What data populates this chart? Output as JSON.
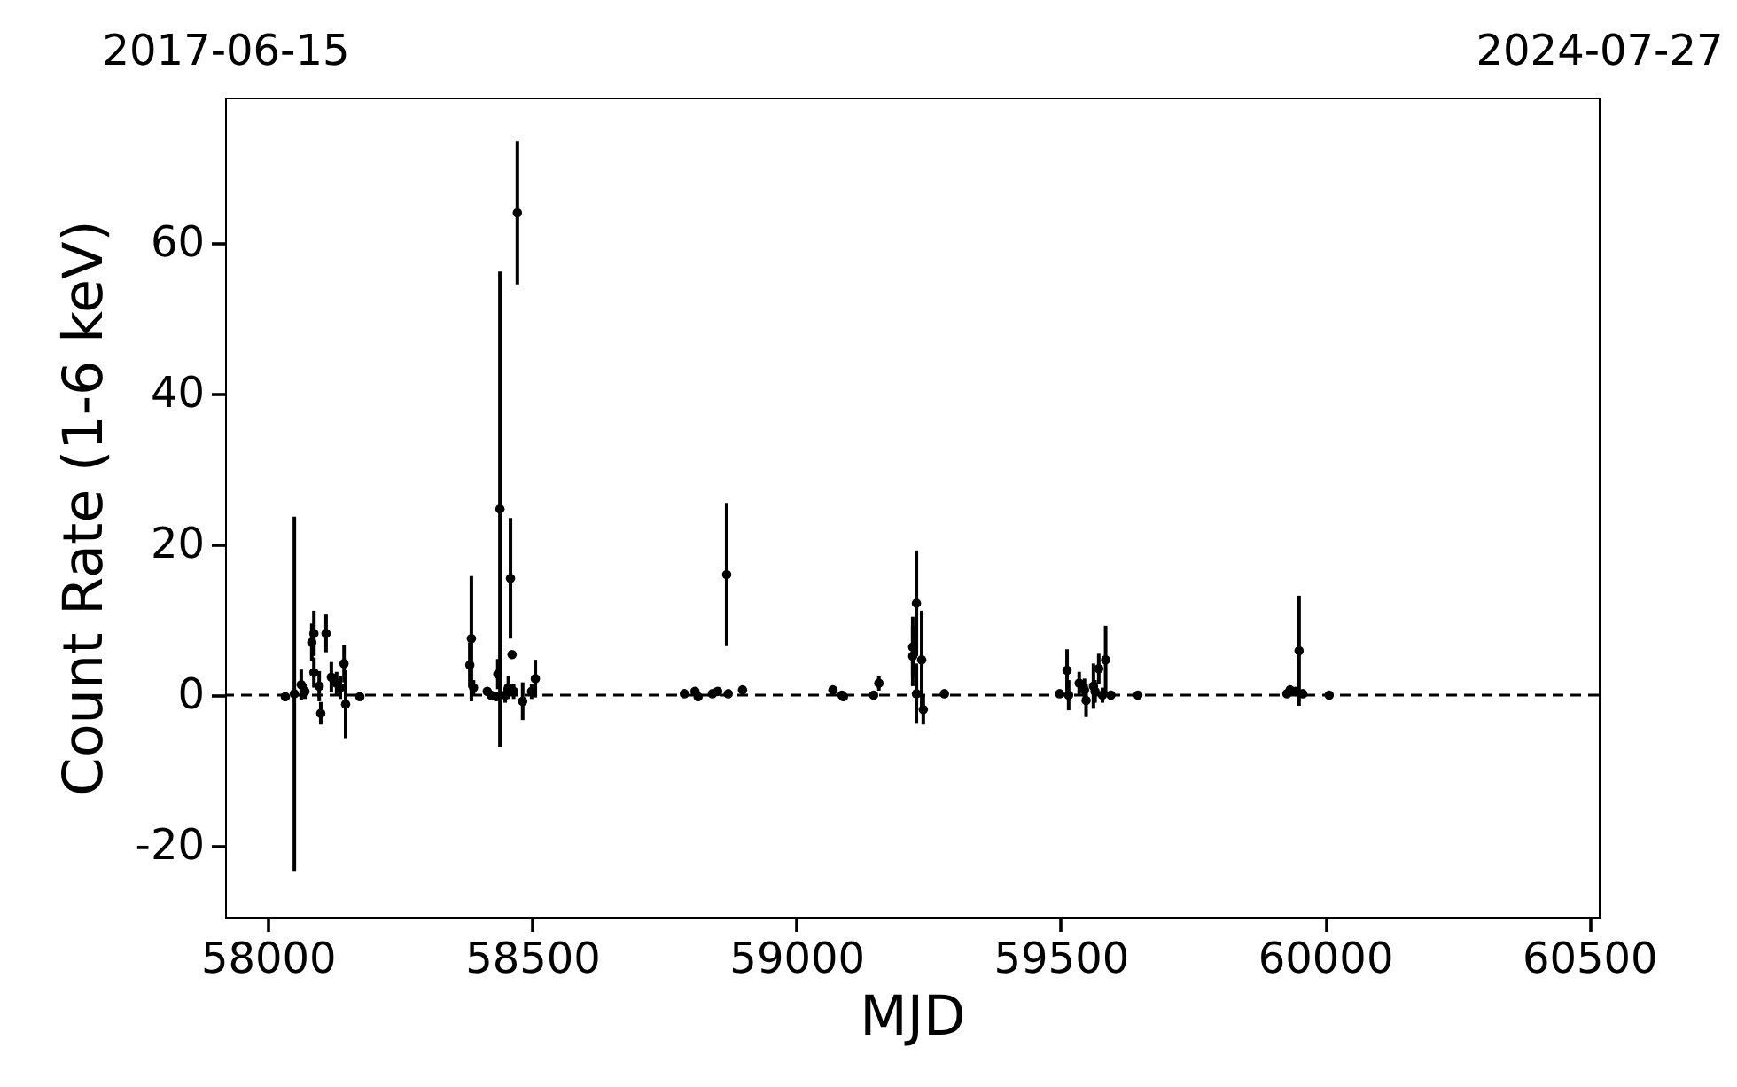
{
  "chart_data": {
    "type": "scatter",
    "xlabel": "MJD",
    "ylabel": "Count Rate (1-6 keV)",
    "marker": "circle",
    "xlim": [
      57919,
      60518
    ],
    "ylim": [
      -29.4,
      79.3
    ],
    "xticks": [
      58000,
      58500,
      59000,
      59500,
      60000,
      60500
    ],
    "yticks": [
      -20,
      0,
      20,
      40,
      60
    ],
    "x2lim": [
      "2017-06-15",
      "2024-07-27"
    ],
    "x2ticks": [
      "2017-06-15",
      "2024-07-27"
    ],
    "ref_lines": [
      {
        "axis": "y",
        "value": 0,
        "color": "#000000",
        "line_style": "dashed"
      }
    ],
    "series": [
      {
        "color": "#000000",
        "x": [
          58033,
          58050,
          58063,
          58070,
          58083,
          58087,
          58110,
          58087,
          58097,
          58100,
          58120,
          58130,
          58144,
          58137,
          58147,
          58174,
          58385,
          58382,
          58389,
          58415,
          58422,
          58439,
          58435,
          58459,
          58462,
          58449,
          58455,
          58465,
          58472,
          58482,
          58506,
          58499,
          58432,
          58788,
          58808,
          58814,
          58841,
          58851,
          58868,
          58871,
          58898,
          59069,
          59089,
          59086,
          59146,
          59156,
          59227,
          59220,
          59220,
          59237,
          59227,
          59240,
          59280,
          59498,
          59512,
          59515,
          59535,
          59545,
          59548,
          59562,
          59565,
          59572,
          59585,
          59579,
          59595,
          59646,
          59928,
          59934,
          59944,
          59951,
          59958,
          60008
        ],
        "values": [
          -0.2,
          0.2,
          1.4,
          0.5,
          7,
          8.2,
          8.2,
          3,
          1.2,
          -2.4,
          2.4,
          1.6,
          4.2,
          1,
          -1.2,
          -0.2,
          7.5,
          4,
          1,
          0.5,
          0,
          24.7,
          2.8,
          15.5,
          5.4,
          0,
          1,
          0.5,
          64,
          -0.8,
          2.2,
          0.5,
          -0.2,
          0.2,
          0.5,
          -0.2,
          0.2,
          0.5,
          16,
          0.2,
          0.7,
          0.7,
          -0.2,
          0,
          0,
          1.6,
          12.2,
          6.4,
          5.2,
          4.7,
          0.2,
          -1.9,
          0.2,
          0.2,
          3.3,
          0,
          1.6,
          0.7,
          -0.7,
          1.2,
          0.5,
          3.5,
          4.7,
          0,
          0,
          0,
          0.2,
          0.7,
          0.5,
          5.9,
          0.2,
          0
        ],
        "errors": [
          0.5,
          23.5,
          2,
          1,
          2.5,
          3,
          2.5,
          2,
          2,
          1.5,
          2,
          1.5,
          2.5,
          1.5,
          4.5,
          0.3,
          8.3,
          3,
          1,
          0.5,
          0.5,
          31.5,
          2,
          8,
          0.5,
          1,
          1.5,
          1,
          9.5,
          2.5,
          2.5,
          1,
          0.5,
          0.3,
          0.3,
          0.3,
          0.3,
          0.3,
          9.5,
          0.3,
          0.5,
          0.5,
          0.3,
          0.3,
          0.3,
          1,
          7,
          4,
          4,
          6.5,
          4,
          2,
          0.3,
          0.5,
          2.8,
          2,
          1.5,
          1.5,
          2.2,
          3,
          1.5,
          2,
          4.5,
          1,
          0.5,
          0.3,
          0.3,
          0.3,
          0.3,
          7.3,
          0.3,
          0.3
        ]
      }
    ]
  }
}
